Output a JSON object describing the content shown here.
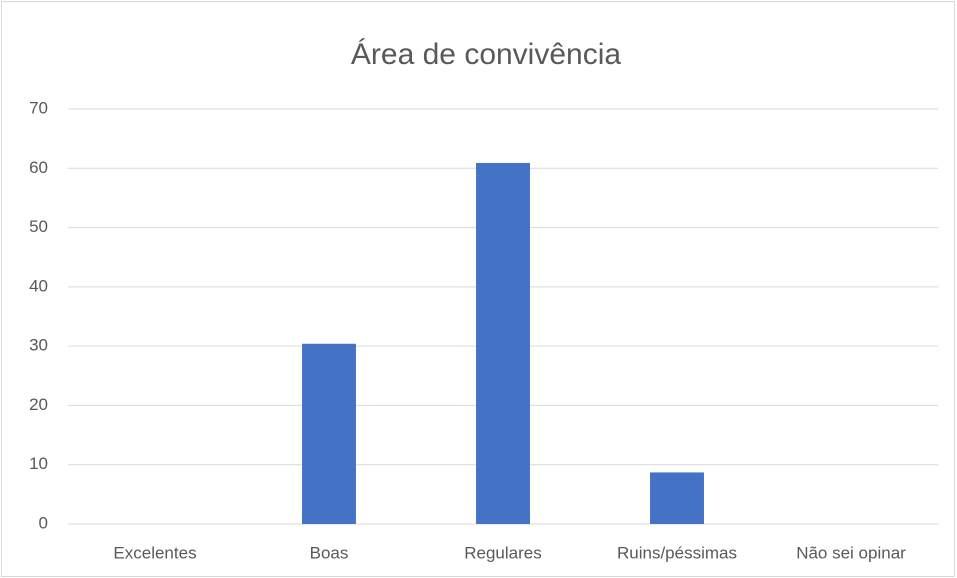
{
  "chart_data": {
    "type": "bar",
    "title": "Área de convivência",
    "categories": [
      "Excelentes",
      "Boas",
      "Regulares",
      "Ruins/péssimas",
      "Não sei opinar"
    ],
    "values": [
      0,
      30.4,
      60.9,
      8.7,
      0
    ],
    "color": "#4472c4",
    "ylim": [
      0,
      70
    ],
    "yticks": [
      0,
      10,
      20,
      30,
      40,
      50,
      60,
      70
    ],
    "grid": true
  }
}
